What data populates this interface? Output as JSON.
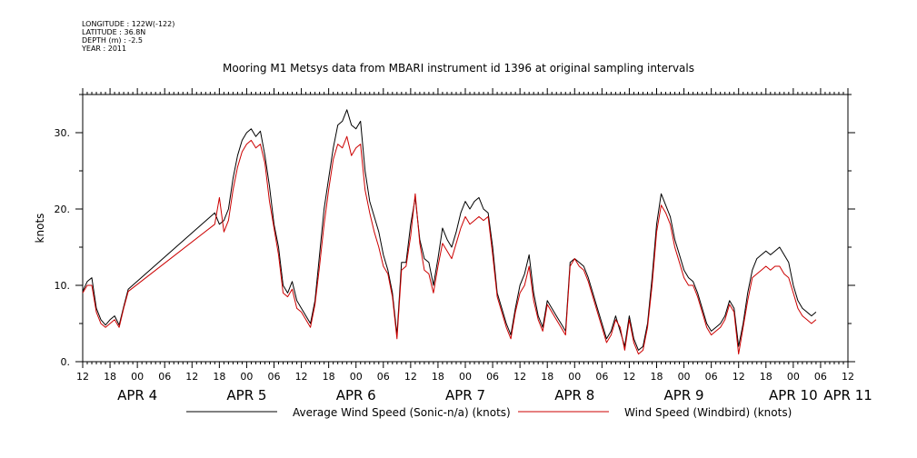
{
  "meta": {
    "longitude": "LONGITUDE : 122W(-122)",
    "latitude": "LATITUDE : 36.8N",
    "depth": "DEPTH (m) : -2.5",
    "year": "YEAR : 2011"
  },
  "chart_data": {
    "type": "line",
    "title": "Mooring M1 Metsys data from MBARI instrument id 1396 at original sampling intervals",
    "xlabel": "",
    "ylabel": "knots",
    "ylim": [
      0,
      35
    ],
    "xlim_hours": [
      0,
      168
    ],
    "grid": false,
    "legend_position": "bottom",
    "hour_ticks": [
      "12",
      "18",
      "00",
      "06",
      "12",
      "18",
      "00",
      "06",
      "12",
      "18",
      "00",
      "06",
      "12",
      "18",
      "00",
      "06",
      "12",
      "18",
      "00",
      "06",
      "12",
      "18",
      "00",
      "06",
      "12",
      "18",
      "00",
      "06",
      "12"
    ],
    "y_ticks": [
      {
        "value": 0,
        "label": "0."
      },
      {
        "value": 10,
        "label": "10."
      },
      {
        "value": 20,
        "label": "20."
      },
      {
        "value": 30,
        "label": "30."
      }
    ],
    "date_labels": [
      {
        "hour": 12,
        "label": "APR  4"
      },
      {
        "hour": 36,
        "label": "APR  5"
      },
      {
        "hour": 60,
        "label": "APR  6"
      },
      {
        "hour": 84,
        "label": "APR  7"
      },
      {
        "hour": 108,
        "label": "APR  8"
      },
      {
        "hour": 132,
        "label": "APR  9"
      },
      {
        "hour": 156,
        "label": "APR 10"
      },
      {
        "hour": 180,
        "label": "APR 11"
      }
    ],
    "series": [
      {
        "name": "Average Wind Speed (Sonic-n/a) (knots)",
        "color": "#000000",
        "points": [
          [
            0,
            9.2
          ],
          [
            1,
            10.5
          ],
          [
            2,
            11.0
          ],
          [
            3,
            7.0
          ],
          [
            4,
            5.5
          ],
          [
            5,
            4.8
          ],
          [
            6,
            5.5
          ],
          [
            7,
            6.0
          ],
          [
            8,
            4.8
          ],
          [
            9,
            7.2
          ],
          [
            10,
            9.5
          ],
          [
            29,
            19.5
          ],
          [
            30,
            18.0
          ],
          [
            31,
            18.5
          ],
          [
            32,
            20.0
          ],
          [
            33,
            24.0
          ],
          [
            34,
            27.0
          ],
          [
            35,
            29.0
          ],
          [
            36,
            30.0
          ],
          [
            37,
            30.5
          ],
          [
            38,
            29.5
          ],
          [
            39,
            30.2
          ],
          [
            40,
            27.0
          ],
          [
            41,
            23.0
          ],
          [
            42,
            18.0
          ],
          [
            43,
            15.0
          ],
          [
            44,
            10.0
          ],
          [
            45,
            9.0
          ],
          [
            46,
            10.5
          ],
          [
            47,
            8.0
          ],
          [
            48,
            7.0
          ],
          [
            49,
            6.0
          ],
          [
            50,
            5.0
          ],
          [
            51,
            8.0
          ],
          [
            52,
            14.0
          ],
          [
            53,
            20.0
          ],
          [
            54,
            24.0
          ],
          [
            55,
            28.0
          ],
          [
            56,
            31.0
          ],
          [
            57,
            31.5
          ],
          [
            58,
            33.0
          ],
          [
            59,
            31.0
          ],
          [
            60,
            30.5
          ],
          [
            61,
            31.5
          ],
          [
            62,
            25.0
          ],
          [
            63,
            21.0
          ],
          [
            64,
            19.0
          ],
          [
            65,
            17.0
          ],
          [
            66,
            14.0
          ],
          [
            67,
            12.0
          ],
          [
            68,
            9.0
          ],
          [
            69,
            3.5
          ],
          [
            70,
            13.0
          ],
          [
            71,
            13.0
          ],
          [
            72,
            18.0
          ],
          [
            73,
            21.5
          ],
          [
            74,
            16.0
          ],
          [
            75,
            13.5
          ],
          [
            76,
            13.0
          ],
          [
            77,
            10.0
          ],
          [
            78,
            13.5
          ],
          [
            79,
            17.5
          ],
          [
            80,
            16.0
          ],
          [
            81,
            15.0
          ],
          [
            82,
            17.0
          ],
          [
            83,
            19.5
          ],
          [
            84,
            21.0
          ],
          [
            85,
            20.0
          ],
          [
            86,
            21.0
          ],
          [
            87,
            21.5
          ],
          [
            88,
            20.0
          ],
          [
            89,
            19.5
          ],
          [
            90,
            15.0
          ],
          [
            91,
            9.0
          ],
          [
            92,
            7.0
          ],
          [
            93,
            5.0
          ],
          [
            94,
            3.5
          ],
          [
            95,
            7.0
          ],
          [
            96,
            10.0
          ],
          [
            97,
            11.5
          ],
          [
            98,
            14.0
          ],
          [
            99,
            9.0
          ],
          [
            100,
            6.0
          ],
          [
            101,
            4.5
          ],
          [
            102,
            8.0
          ],
          [
            103,
            7.0
          ],
          [
            104,
            6.0
          ],
          [
            105,
            5.0
          ],
          [
            106,
            4.0
          ],
          [
            107,
            13.0
          ],
          [
            108,
            13.5
          ],
          [
            109,
            13.0
          ],
          [
            110,
            12.5
          ],
          [
            111,
            11.0
          ],
          [
            112,
            9.0
          ],
          [
            113,
            7.0
          ],
          [
            114,
            5.0
          ],
          [
            115,
            3.0
          ],
          [
            116,
            4.0
          ],
          [
            117,
            6.0
          ],
          [
            118,
            4.0
          ],
          [
            119,
            2.0
          ],
          [
            120,
            6.0
          ],
          [
            121,
            3.0
          ],
          [
            122,
            1.5
          ],
          [
            123,
            2.0
          ],
          [
            124,
            5.0
          ],
          [
            125,
            11.0
          ],
          [
            126,
            18.0
          ],
          [
            127,
            22.0
          ],
          [
            128,
            20.5
          ],
          [
            129,
            19.0
          ],
          [
            130,
            16.0
          ],
          [
            131,
            14.0
          ],
          [
            132,
            12.0
          ],
          [
            133,
            11.0
          ],
          [
            134,
            10.5
          ],
          [
            135,
            9.0
          ],
          [
            136,
            7.0
          ],
          [
            137,
            5.0
          ],
          [
            138,
            4.0
          ],
          [
            139,
            4.5
          ],
          [
            140,
            5.0
          ],
          [
            141,
            6.0
          ],
          [
            142,
            8.0
          ],
          [
            143,
            7.0
          ],
          [
            144,
            2.0
          ],
          [
            145,
            5.0
          ],
          [
            146,
            9.0
          ],
          [
            147,
            12.0
          ],
          [
            148,
            13.5
          ],
          [
            149,
            14.0
          ],
          [
            150,
            14.5
          ],
          [
            151,
            14.0
          ],
          [
            152,
            14.5
          ],
          [
            153,
            15.0
          ],
          [
            154,
            14.0
          ],
          [
            155,
            13.0
          ],
          [
            156,
            10.0
          ],
          [
            157,
            8.0
          ],
          [
            158,
            7.0
          ],
          [
            159,
            6.5
          ],
          [
            160,
            6.0
          ],
          [
            161,
            6.5
          ]
        ]
      },
      {
        "name": "Wind Speed (Windbird) (knots)",
        "color": "#cc0000",
        "points": [
          [
            0,
            9.0
          ],
          [
            1,
            10.0
          ],
          [
            2,
            10.0
          ],
          [
            3,
            6.5
          ],
          [
            4,
            5.0
          ],
          [
            5,
            4.5
          ],
          [
            6,
            5.0
          ],
          [
            7,
            5.5
          ],
          [
            8,
            4.5
          ],
          [
            9,
            7.0
          ],
          [
            10,
            9.2
          ],
          [
            29,
            18.0
          ],
          [
            30,
            21.5
          ],
          [
            31,
            17.0
          ],
          [
            32,
            18.5
          ],
          [
            33,
            22.5
          ],
          [
            34,
            25.5
          ],
          [
            35,
            27.5
          ],
          [
            36,
            28.5
          ],
          [
            37,
            29.0
          ],
          [
            38,
            28.0
          ],
          [
            39,
            28.5
          ],
          [
            40,
            26.0
          ],
          [
            41,
            21.0
          ],
          [
            42,
            17.5
          ],
          [
            43,
            14.0
          ],
          [
            44,
            9.0
          ],
          [
            45,
            8.5
          ],
          [
            46,
            9.5
          ],
          [
            47,
            7.0
          ],
          [
            48,
            6.5
          ],
          [
            49,
            5.5
          ],
          [
            50,
            4.5
          ],
          [
            51,
            7.5
          ],
          [
            52,
            12.5
          ],
          [
            53,
            18.0
          ],
          [
            54,
            22.5
          ],
          [
            55,
            26.5
          ],
          [
            56,
            28.5
          ],
          [
            57,
            28.0
          ],
          [
            58,
            29.5
          ],
          [
            59,
            27.0
          ],
          [
            60,
            28.0
          ],
          [
            61,
            28.5
          ],
          [
            62,
            22.5
          ],
          [
            63,
            19.5
          ],
          [
            64,
            17.0
          ],
          [
            65,
            15.0
          ],
          [
            66,
            12.5
          ],
          [
            67,
            11.5
          ],
          [
            68,
            8.5
          ],
          [
            69,
            3.0
          ],
          [
            70,
            12.0
          ],
          [
            71,
            12.5
          ],
          [
            72,
            16.5
          ],
          [
            73,
            22.0
          ],
          [
            74,
            15.5
          ],
          [
            75,
            12.0
          ],
          [
            76,
            11.5
          ],
          [
            77,
            9.0
          ],
          [
            78,
            12.5
          ],
          [
            79,
            15.5
          ],
          [
            80,
            14.5
          ],
          [
            81,
            13.5
          ],
          [
            82,
            15.5
          ],
          [
            83,
            17.5
          ],
          [
            84,
            19.0
          ],
          [
            85,
            18.0
          ],
          [
            86,
            18.5
          ],
          [
            87,
            19.0
          ],
          [
            88,
            18.5
          ],
          [
            89,
            19.0
          ],
          [
            90,
            14.0
          ],
          [
            91,
            8.5
          ],
          [
            92,
            6.5
          ],
          [
            93,
            4.5
          ],
          [
            94,
            3.0
          ],
          [
            95,
            6.5
          ],
          [
            96,
            9.0
          ],
          [
            97,
            10.0
          ],
          [
            98,
            12.5
          ],
          [
            99,
            8.0
          ],
          [
            100,
            5.5
          ],
          [
            101,
            4.0
          ],
          [
            102,
            7.5
          ],
          [
            103,
            6.5
          ],
          [
            104,
            5.5
          ],
          [
            105,
            4.5
          ],
          [
            106,
            3.5
          ],
          [
            107,
            12.5
          ],
          [
            108,
            13.5
          ],
          [
            109,
            12.5
          ],
          [
            110,
            12.0
          ],
          [
            111,
            10.5
          ],
          [
            112,
            8.5
          ],
          [
            113,
            6.5
          ],
          [
            114,
            4.5
          ],
          [
            115,
            2.5
          ],
          [
            116,
            3.5
          ],
          [
            117,
            5.5
          ],
          [
            118,
            4.5
          ],
          [
            119,
            1.5
          ],
          [
            120,
            5.5
          ],
          [
            121,
            2.5
          ],
          [
            122,
            1.0
          ],
          [
            123,
            1.5
          ],
          [
            124,
            4.5
          ],
          [
            125,
            10.0
          ],
          [
            126,
            17.0
          ],
          [
            127,
            20.5
          ],
          [
            128,
            19.5
          ],
          [
            129,
            18.0
          ],
          [
            130,
            15.0
          ],
          [
            131,
            13.0
          ],
          [
            132,
            11.0
          ],
          [
            133,
            10.0
          ],
          [
            134,
            10.0
          ],
          [
            135,
            8.5
          ],
          [
            136,
            6.5
          ],
          [
            137,
            4.5
          ],
          [
            138,
            3.5
          ],
          [
            139,
            4.0
          ],
          [
            140,
            4.5
          ],
          [
            141,
            5.5
          ],
          [
            142,
            7.5
          ],
          [
            143,
            6.5
          ],
          [
            144,
            1.0
          ],
          [
            145,
            4.5
          ],
          [
            146,
            8.0
          ],
          [
            147,
            11.0
          ],
          [
            148,
            11.5
          ],
          [
            149,
            12.0
          ],
          [
            150,
            12.5
          ],
          [
            151,
            12.0
          ],
          [
            152,
            12.5
          ],
          [
            153,
            12.5
          ],
          [
            154,
            11.5
          ],
          [
            155,
            11.0
          ],
          [
            156,
            9.0
          ],
          [
            157,
            7.0
          ],
          [
            158,
            6.0
          ],
          [
            159,
            5.5
          ],
          [
            160,
            5.0
          ],
          [
            161,
            5.5
          ]
        ]
      }
    ]
  }
}
